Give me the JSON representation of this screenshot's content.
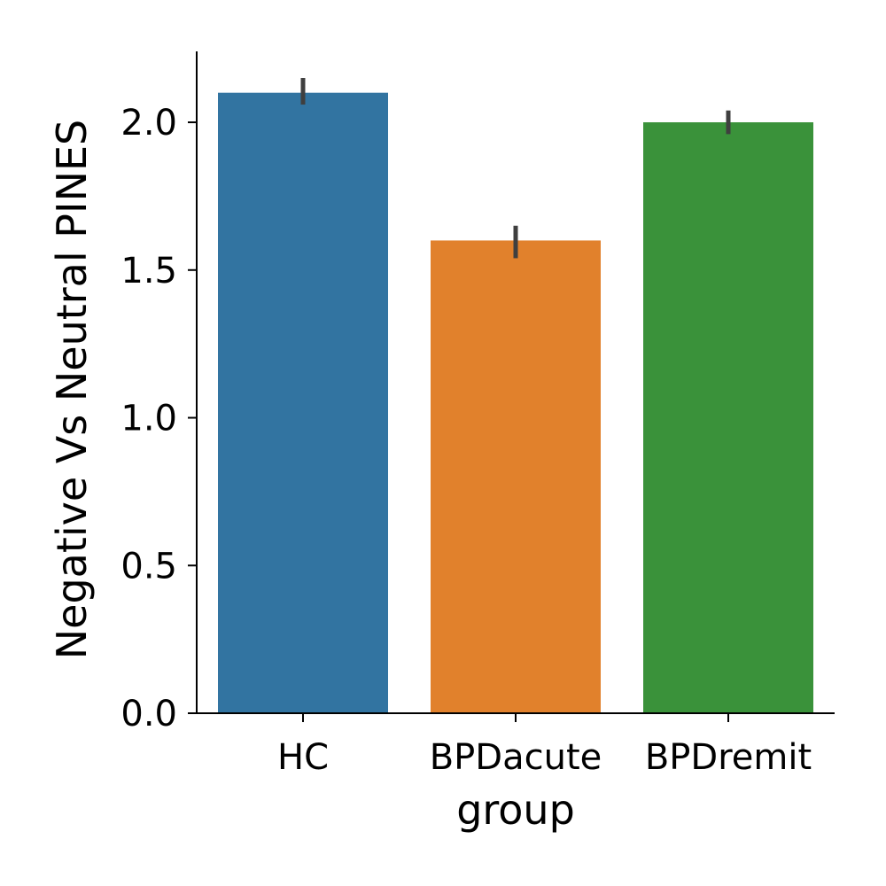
{
  "chart_data": {
    "type": "bar",
    "title": "",
    "xlabel": "group",
    "ylabel": "Negative Vs Neutral PINES",
    "categories": [
      "HC",
      "BPDacute",
      "BPDremit"
    ],
    "values": [
      2.1,
      1.6,
      2.0
    ],
    "error_low": [
      2.06,
      1.54,
      1.96
    ],
    "error_high": [
      2.15,
      1.65,
      2.04
    ],
    "ylim": [
      0,
      2.24
    ],
    "yticks": [
      0.0,
      0.5,
      1.0,
      1.5,
      2.0
    ],
    "ytick_labels": [
      "0.0",
      "0.5",
      "1.0",
      "1.5",
      "2.0"
    ],
    "colors": [
      "#3274a1",
      "#e1812c",
      "#3a923a"
    ],
    "errorbar_color": "#3f3f3f",
    "grid": false,
    "legend": "none"
  }
}
